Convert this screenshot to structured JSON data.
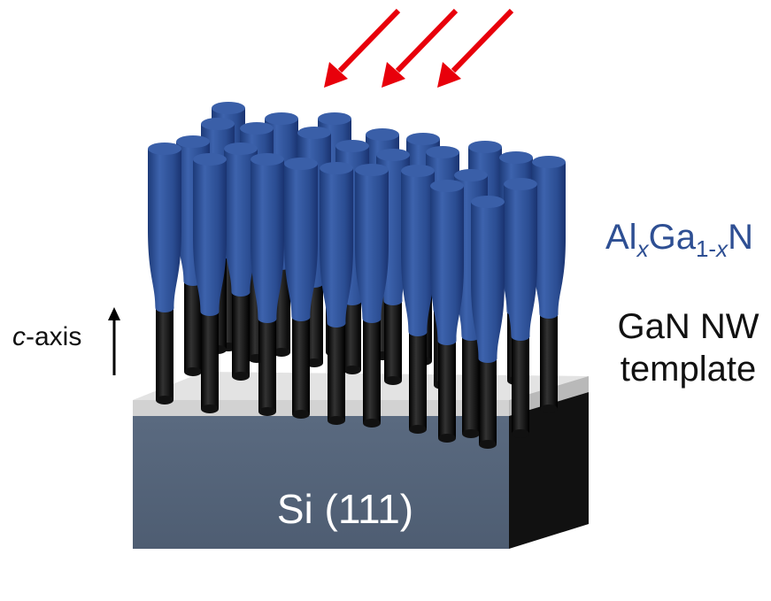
{
  "labels": {
    "alloy": {
      "base1": "Al",
      "sub1": "x",
      "base2": "Ga",
      "sub2_num": "1-",
      "sub2_var": "x",
      "base3": "N"
    },
    "template_line1": "GaN NW",
    "template_line2": "template",
    "axis_italic": "c",
    "axis_rest": "-axis",
    "substrate": "Si (111)"
  },
  "colors": {
    "nanowire_shell": "#2E4F93",
    "nanowire_core": "#0d0d0d",
    "substrate_front": "#56657A",
    "substrate_side": "#111111",
    "buffer_layer": "#E3E3E3",
    "arrows": "#E8000B"
  },
  "icons": [
    "incident-arrow-icon",
    "c-axis-arrow-icon"
  ]
}
